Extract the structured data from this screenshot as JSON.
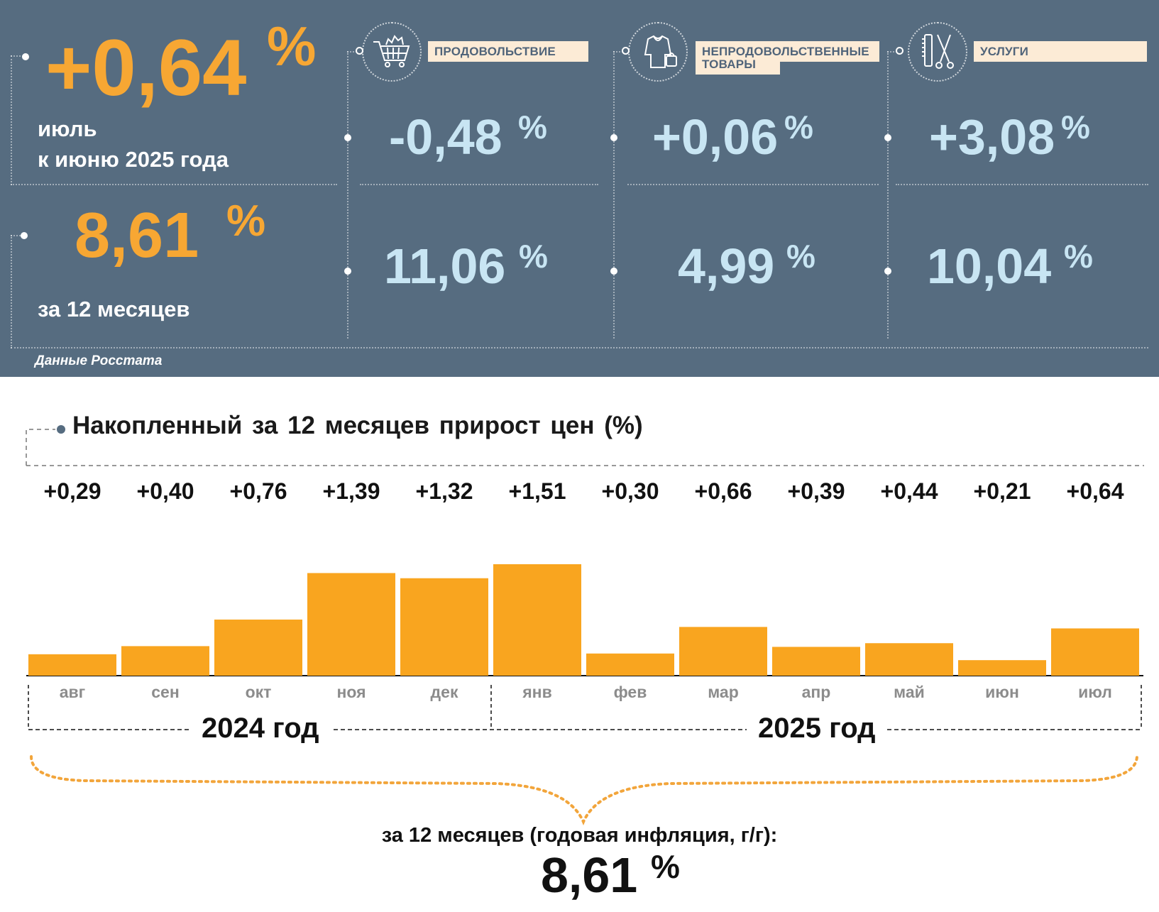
{
  "summary": {
    "monthly_value": "+0,64",
    "monthly_pct": "%",
    "monthly_label_line1": "июль",
    "monthly_label_line2": "к июню 2025 года",
    "annual_value": "8,61",
    "annual_pct": "%",
    "annual_label": "за 12 месяцев"
  },
  "categories": [
    {
      "label": "ПРОДОВОЛЬСТВИЕ",
      "icon": "shopping-cart-icon",
      "monthly": "-0,48",
      "annual": "11,06",
      "pct": "%"
    },
    {
      "label_line1": "НЕПРОДОВОЛЬСТВЕННЫЕ",
      "label_line2": "ТОВАРЫ",
      "icon": "clothing-bag-icon",
      "monthly": "+0,06",
      "annual": "4,99",
      "pct": "%"
    },
    {
      "label": "УСЛУГИ",
      "icon": "comb-scissors-icon",
      "monthly": "+3,08",
      "annual": "10,04",
      "pct": "%"
    }
  ],
  "source_note": "Данные Росстата",
  "chart_title": "Накопленный за 12 месяцев прирост цен (%)",
  "chart_data": {
    "type": "bar",
    "title": "Накопленный за 12 месяцев прирост цен (%)",
    "categories": [
      "авг",
      "сен",
      "окт",
      "ноя",
      "дек",
      "янв",
      "фев",
      "мар",
      "апр",
      "май",
      "июн",
      "июл"
    ],
    "values": [
      0.29,
      0.4,
      0.76,
      1.39,
      1.32,
      1.51,
      0.3,
      0.66,
      0.39,
      0.44,
      0.21,
      0.64
    ],
    "value_labels": [
      "+0,29",
      "+0,40",
      "+0,76",
      "+1,39",
      "+1,32",
      "+1,51",
      "+0,30",
      "+0,66",
      "+0,39",
      "+0,44",
      "+0,21",
      "+0,64"
    ],
    "year_groups": [
      {
        "label": "2024 год",
        "months": 5
      },
      {
        "label": "2025 год",
        "months": 7
      }
    ],
    "bar_color": "#f9a51f",
    "grid": false,
    "legend": "none"
  },
  "footer": {
    "caption": "за 12 месяцев (годовая инфляция, г/г):",
    "value": "8,61",
    "pct": "%"
  },
  "colors": {
    "panel_bg": "#566c80",
    "accent_orange": "#f7a733",
    "value_blue": "#c8e5f3",
    "label_bg": "#fcebd6"
  }
}
